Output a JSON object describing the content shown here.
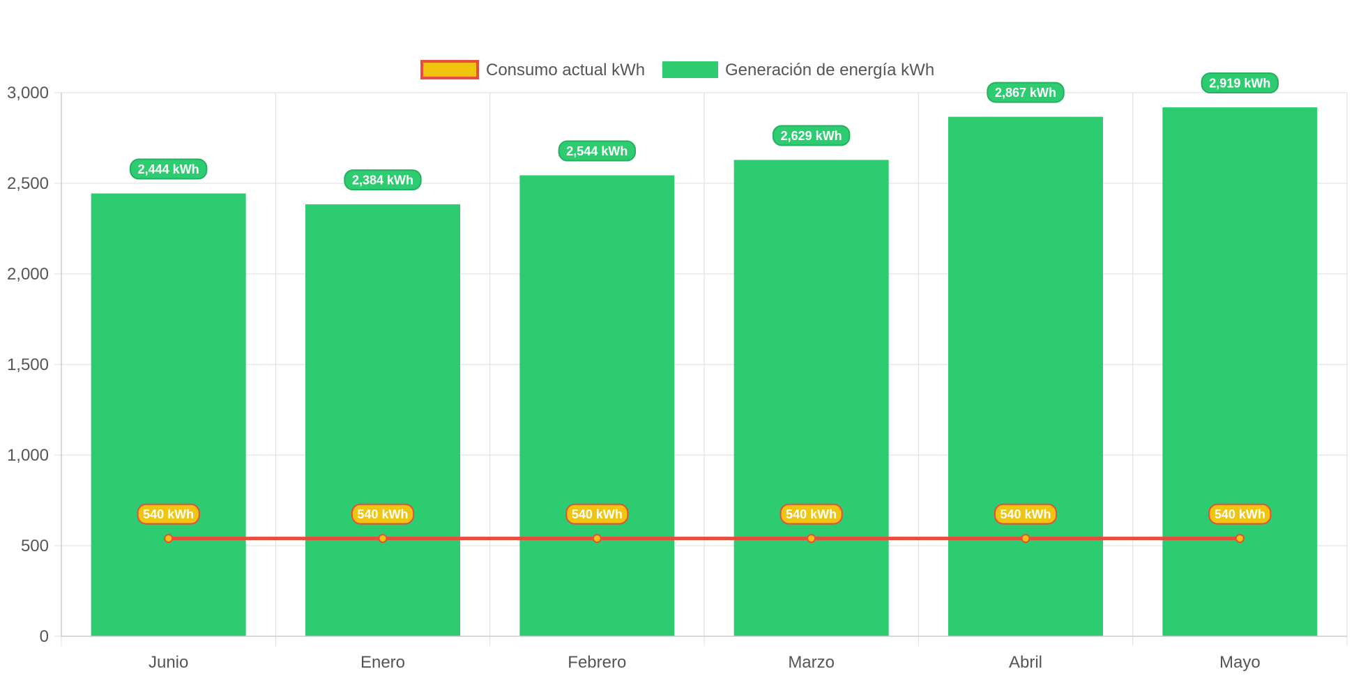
{
  "chart_data": {
    "type": "bar",
    "categories": [
      "Junio",
      "Enero",
      "Febrero",
      "Marzo",
      "Abril",
      "Mayo"
    ],
    "series": [
      {
        "name": "Generación de energía kWh",
        "type": "bar",
        "values": [
          2444,
          2384,
          2544,
          2629,
          2867,
          2919
        ],
        "labels": [
          "2,444 kWh",
          "2,384 kWh",
          "2,544 kWh",
          "2,629 kWh",
          "2,867 kWh",
          "2,919 kWh"
        ],
        "color": "#2ecc71"
      },
      {
        "name": "Consumo actual kWh",
        "type": "line",
        "values": [
          540,
          540,
          540,
          540,
          540,
          540
        ],
        "labels": [
          "540 kWh",
          "540 kWh",
          "540 kWh",
          "540 kWh",
          "540 kWh",
          "540 kWh"
        ],
        "color": "#e74c3c",
        "fill_color": "#f1c40f"
      }
    ],
    "ylim": [
      0,
      3000
    ],
    "yticks": [
      0,
      500,
      1000,
      1500,
      2000,
      2500,
      3000
    ],
    "ytick_labels": [
      "0",
      "500",
      "1,000",
      "1,500",
      "2,000",
      "2,500",
      "3,000"
    ],
    "grid": true,
    "legend": "top-center",
    "legend_entries": [
      "Consumo actual kWh",
      "Generación de energía kWh"
    ],
    "title": "",
    "xlabel": "",
    "ylabel": ""
  }
}
